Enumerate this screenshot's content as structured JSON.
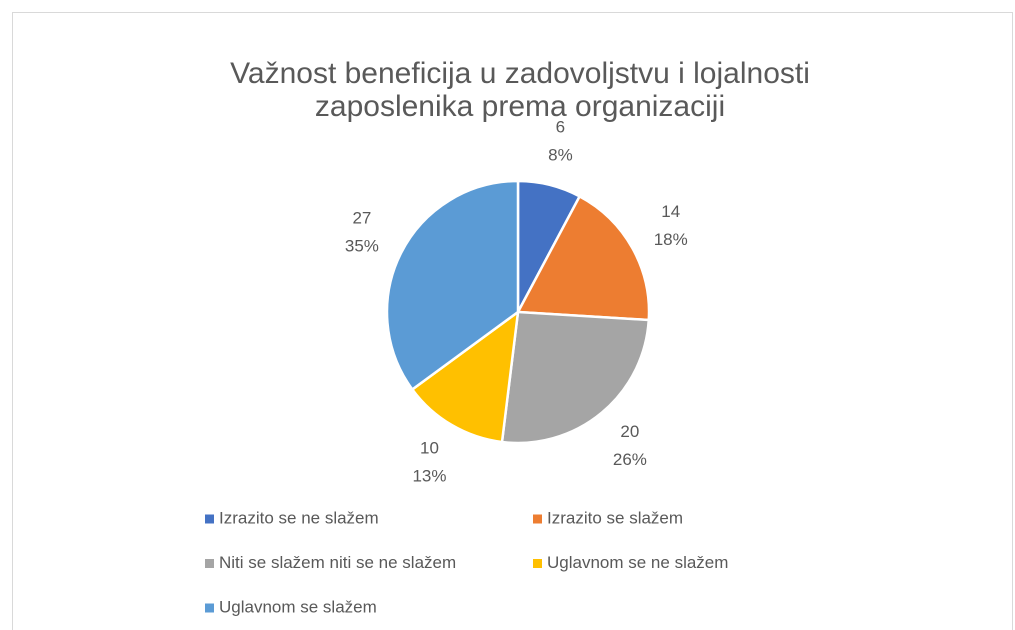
{
  "chart_data": {
    "type": "pie",
    "title": [
      "Važnost beneficija u zadovoljstvu i lojalnosti",
      "zaposlenika prema organizaciji"
    ],
    "categories": [
      "Izrazito se ne slažem",
      "Izrazito se slažem",
      "Niti se slažem niti se ne slažem",
      "Uglavnom se ne slažem",
      "Uglavnom se slažem"
    ],
    "values": [
      6,
      14,
      20,
      10,
      27
    ],
    "percent_labels": [
      "8%",
      "18%",
      "26%",
      "13%",
      "35%"
    ],
    "colors": [
      "#4472c4",
      "#ed7d31",
      "#a5a5a5",
      "#ffc000",
      "#5b9bd5"
    ],
    "legend": "bottom"
  }
}
